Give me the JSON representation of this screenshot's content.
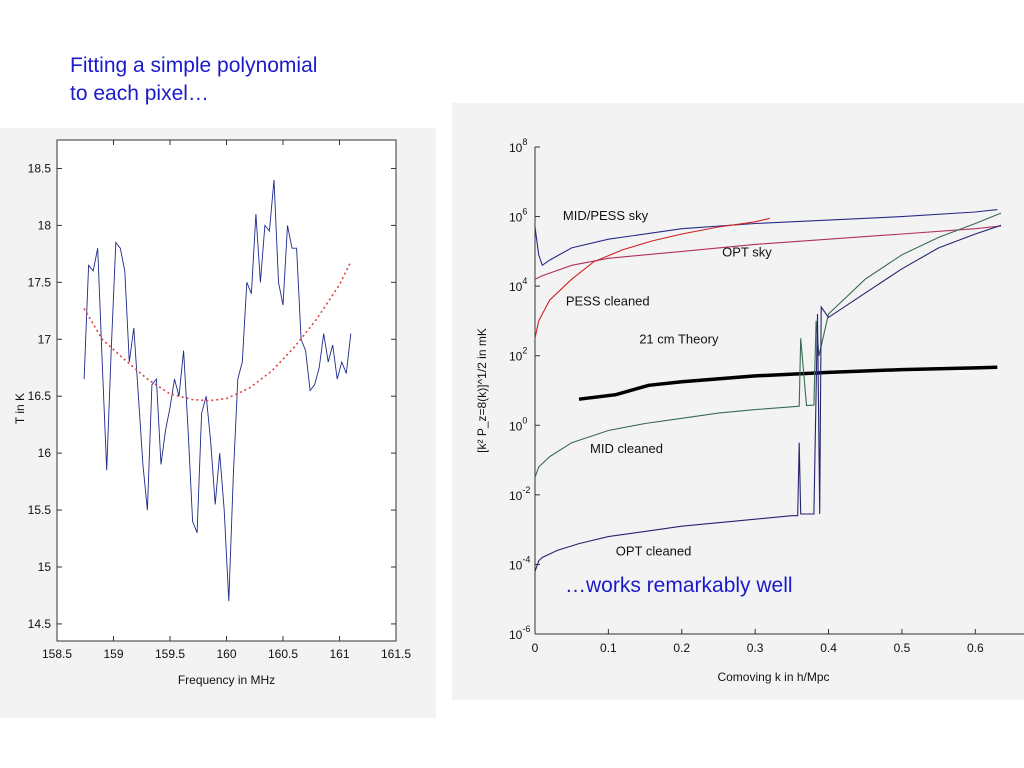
{
  "captions": {
    "top_line1": "Fitting a simple polynomial",
    "top_line2": "to each pixel…",
    "bottom": "…works remarkably well"
  },
  "chart_data": [
    {
      "type": "line",
      "title": "",
      "xlabel": "Frequency in MHz",
      "ylabel": "T in K",
      "xlim": [
        158.5,
        161.5
      ],
      "ylim": [
        14.35,
        18.75
      ],
      "xticks": [
        "158.5",
        "159",
        "159.5",
        "160",
        "160.5",
        "161",
        "161.5"
      ],
      "yticks": [
        "14.5",
        "15",
        "15.5",
        "16",
        "16.5",
        "17",
        "17.5",
        "18",
        "18.5"
      ],
      "grid": false,
      "series": [
        {
          "color": "#1f2a8a",
          "style": "solid",
          "x": [
            158.74,
            158.78,
            158.82,
            158.86,
            158.9,
            158.94,
            158.98,
            159.02,
            159.06,
            159.1,
            159.14,
            159.18,
            159.22,
            159.26,
            159.3,
            159.34,
            159.38,
            159.42,
            159.46,
            159.5,
            159.54,
            159.58,
            159.62,
            159.66,
            159.7,
            159.74,
            159.78,
            159.82,
            159.86,
            159.9,
            159.94,
            159.98,
            160.02,
            160.06,
            160.1,
            160.14,
            160.18,
            160.22,
            160.26,
            160.3,
            160.34,
            160.38,
            160.42,
            160.46,
            160.5,
            160.54,
            160.58,
            160.62,
            160.66,
            160.7,
            160.74,
            160.78,
            160.82,
            160.86,
            160.9,
            160.94,
            160.98,
            161.02,
            161.06,
            161.1
          ],
          "values": [
            16.65,
            17.65,
            17.6,
            17.8,
            16.8,
            15.85,
            16.9,
            17.85,
            17.8,
            17.6,
            16.8,
            17.1,
            16.5,
            15.9,
            15.5,
            16.6,
            16.65,
            15.9,
            16.2,
            16.4,
            16.65,
            16.5,
            16.9,
            16.2,
            15.4,
            15.3,
            16.35,
            16.5,
            16.1,
            15.55,
            16.0,
            15.5,
            14.7,
            15.8,
            16.65,
            16.8,
            17.5,
            17.4,
            18.1,
            17.5,
            18.0,
            17.95,
            18.4,
            17.5,
            17.3,
            18.0,
            17.8,
            17.8,
            17.0,
            16.9,
            16.55,
            16.6,
            16.75,
            17.05,
            16.8,
            16.95,
            16.65,
            16.8,
            16.7,
            17.05
          ]
        },
        {
          "color": "#e04040",
          "style": "dotted",
          "x": [
            158.74,
            158.9,
            159.1,
            159.3,
            159.5,
            159.7,
            159.85,
            160.0,
            160.2,
            160.4,
            160.6,
            160.8,
            161.0,
            161.1
          ],
          "values": [
            17.27,
            17.0,
            16.82,
            16.65,
            16.52,
            16.47,
            16.46,
            16.48,
            16.57,
            16.72,
            16.93,
            17.18,
            17.48,
            17.68
          ]
        }
      ]
    },
    {
      "type": "line",
      "title": "",
      "xlabel": "Comoving k in h/Mpc",
      "ylabel": "[k² P_z=8(k)]^1/2 in mK",
      "xlim": [
        0,
        0.65
      ],
      "ylim_log10": [
        -6,
        8
      ],
      "log_y": true,
      "xticks": [
        "0",
        "0.1",
        "0.2",
        "0.3",
        "0.4",
        "0.5",
        "0.6"
      ],
      "ytick_exponents": [
        "8",
        "6",
        "4",
        "2",
        "0",
        "-2",
        "-4",
        "-6"
      ],
      "ytick_base": "10",
      "grid": false,
      "annotations": [
        "MID/PESS sky",
        "OPT sky",
        "PESS cleaned",
        "21 cm Theory",
        "MID cleaned",
        "OPT cleaned"
      ],
      "series": [
        {
          "label_ref": "MID/PESS sky",
          "color": "#2a2a8a",
          "x": [
            0,
            0.005,
            0.01,
            0.02,
            0.05,
            0.1,
            0.2,
            0.3,
            0.4,
            0.5,
            0.6,
            0.63
          ],
          "log_values": [
            5.7,
            4.9,
            4.6,
            4.75,
            5.1,
            5.35,
            5.65,
            5.8,
            5.9,
            6.0,
            6.13,
            6.2
          ]
        },
        {
          "label_ref": "OPT sky",
          "color": "#b03060",
          "x": [
            0,
            0.01,
            0.05,
            0.1,
            0.2,
            0.3,
            0.4,
            0.5,
            0.6,
            0.635
          ],
          "log_values": [
            4.2,
            4.3,
            4.6,
            4.8,
            5.0,
            5.2,
            5.35,
            5.5,
            5.65,
            5.73
          ]
        },
        {
          "label_ref": "PESS cleaned",
          "color": "#d02020",
          "x": [
            0,
            0.005,
            0.01,
            0.02,
            0.05,
            0.08,
            0.12,
            0.16,
            0.2,
            0.25,
            0.3,
            0.32
          ],
          "log_values": [
            2.5,
            3.0,
            3.2,
            3.6,
            4.2,
            4.7,
            5.05,
            5.3,
            5.5,
            5.7,
            5.85,
            5.95
          ]
        },
        {
          "label_ref": "21 cm Theory",
          "color": "#000000",
          "x": [
            0.06,
            0.11,
            0.155,
            0.2,
            0.3,
            0.4,
            0.5,
            0.6,
            0.63
          ],
          "log_values": [
            0.75,
            0.88,
            1.15,
            1.25,
            1.42,
            1.52,
            1.6,
            1.65,
            1.67
          ]
        },
        {
          "label_ref": "MID cleaned",
          "color": "#3a6a50",
          "x": [
            0,
            0.005,
            0.02,
            0.05,
            0.1,
            0.15,
            0.2,
            0.25,
            0.3,
            0.35,
            0.36,
            0.362,
            0.37,
            0.38,
            0.383,
            0.387,
            0.4,
            0.45,
            0.5,
            0.55,
            0.6,
            0.635
          ],
          "log_values": [
            -1.5,
            -1.2,
            -0.9,
            -0.5,
            -0.15,
            0.05,
            0.2,
            0.35,
            0.45,
            0.53,
            0.55,
            2.5,
            0.57,
            0.58,
            3.0,
            2.0,
            3.2,
            4.2,
            4.9,
            5.4,
            5.8,
            6.1
          ]
        },
        {
          "label_ref": "OPT cleaned",
          "color": "#25256e",
          "x": [
            0,
            0.005,
            0.01,
            0.03,
            0.06,
            0.1,
            0.15,
            0.2,
            0.25,
            0.3,
            0.35,
            0.358,
            0.36,
            0.362,
            0.365,
            0.38,
            0.385,
            0.388,
            0.39,
            0.4,
            0.45,
            0.5,
            0.55,
            0.6,
            0.635
          ],
          "log_values": [
            -4.2,
            -3.9,
            -3.8,
            -3.6,
            -3.4,
            -3.2,
            -3.05,
            -2.9,
            -2.8,
            -2.7,
            -2.6,
            -2.6,
            -0.5,
            -2.55,
            -2.55,
            -2.55,
            3.2,
            -2.55,
            3.4,
            3.1,
            3.8,
            4.5,
            5.1,
            5.5,
            5.75
          ]
        }
      ]
    }
  ]
}
